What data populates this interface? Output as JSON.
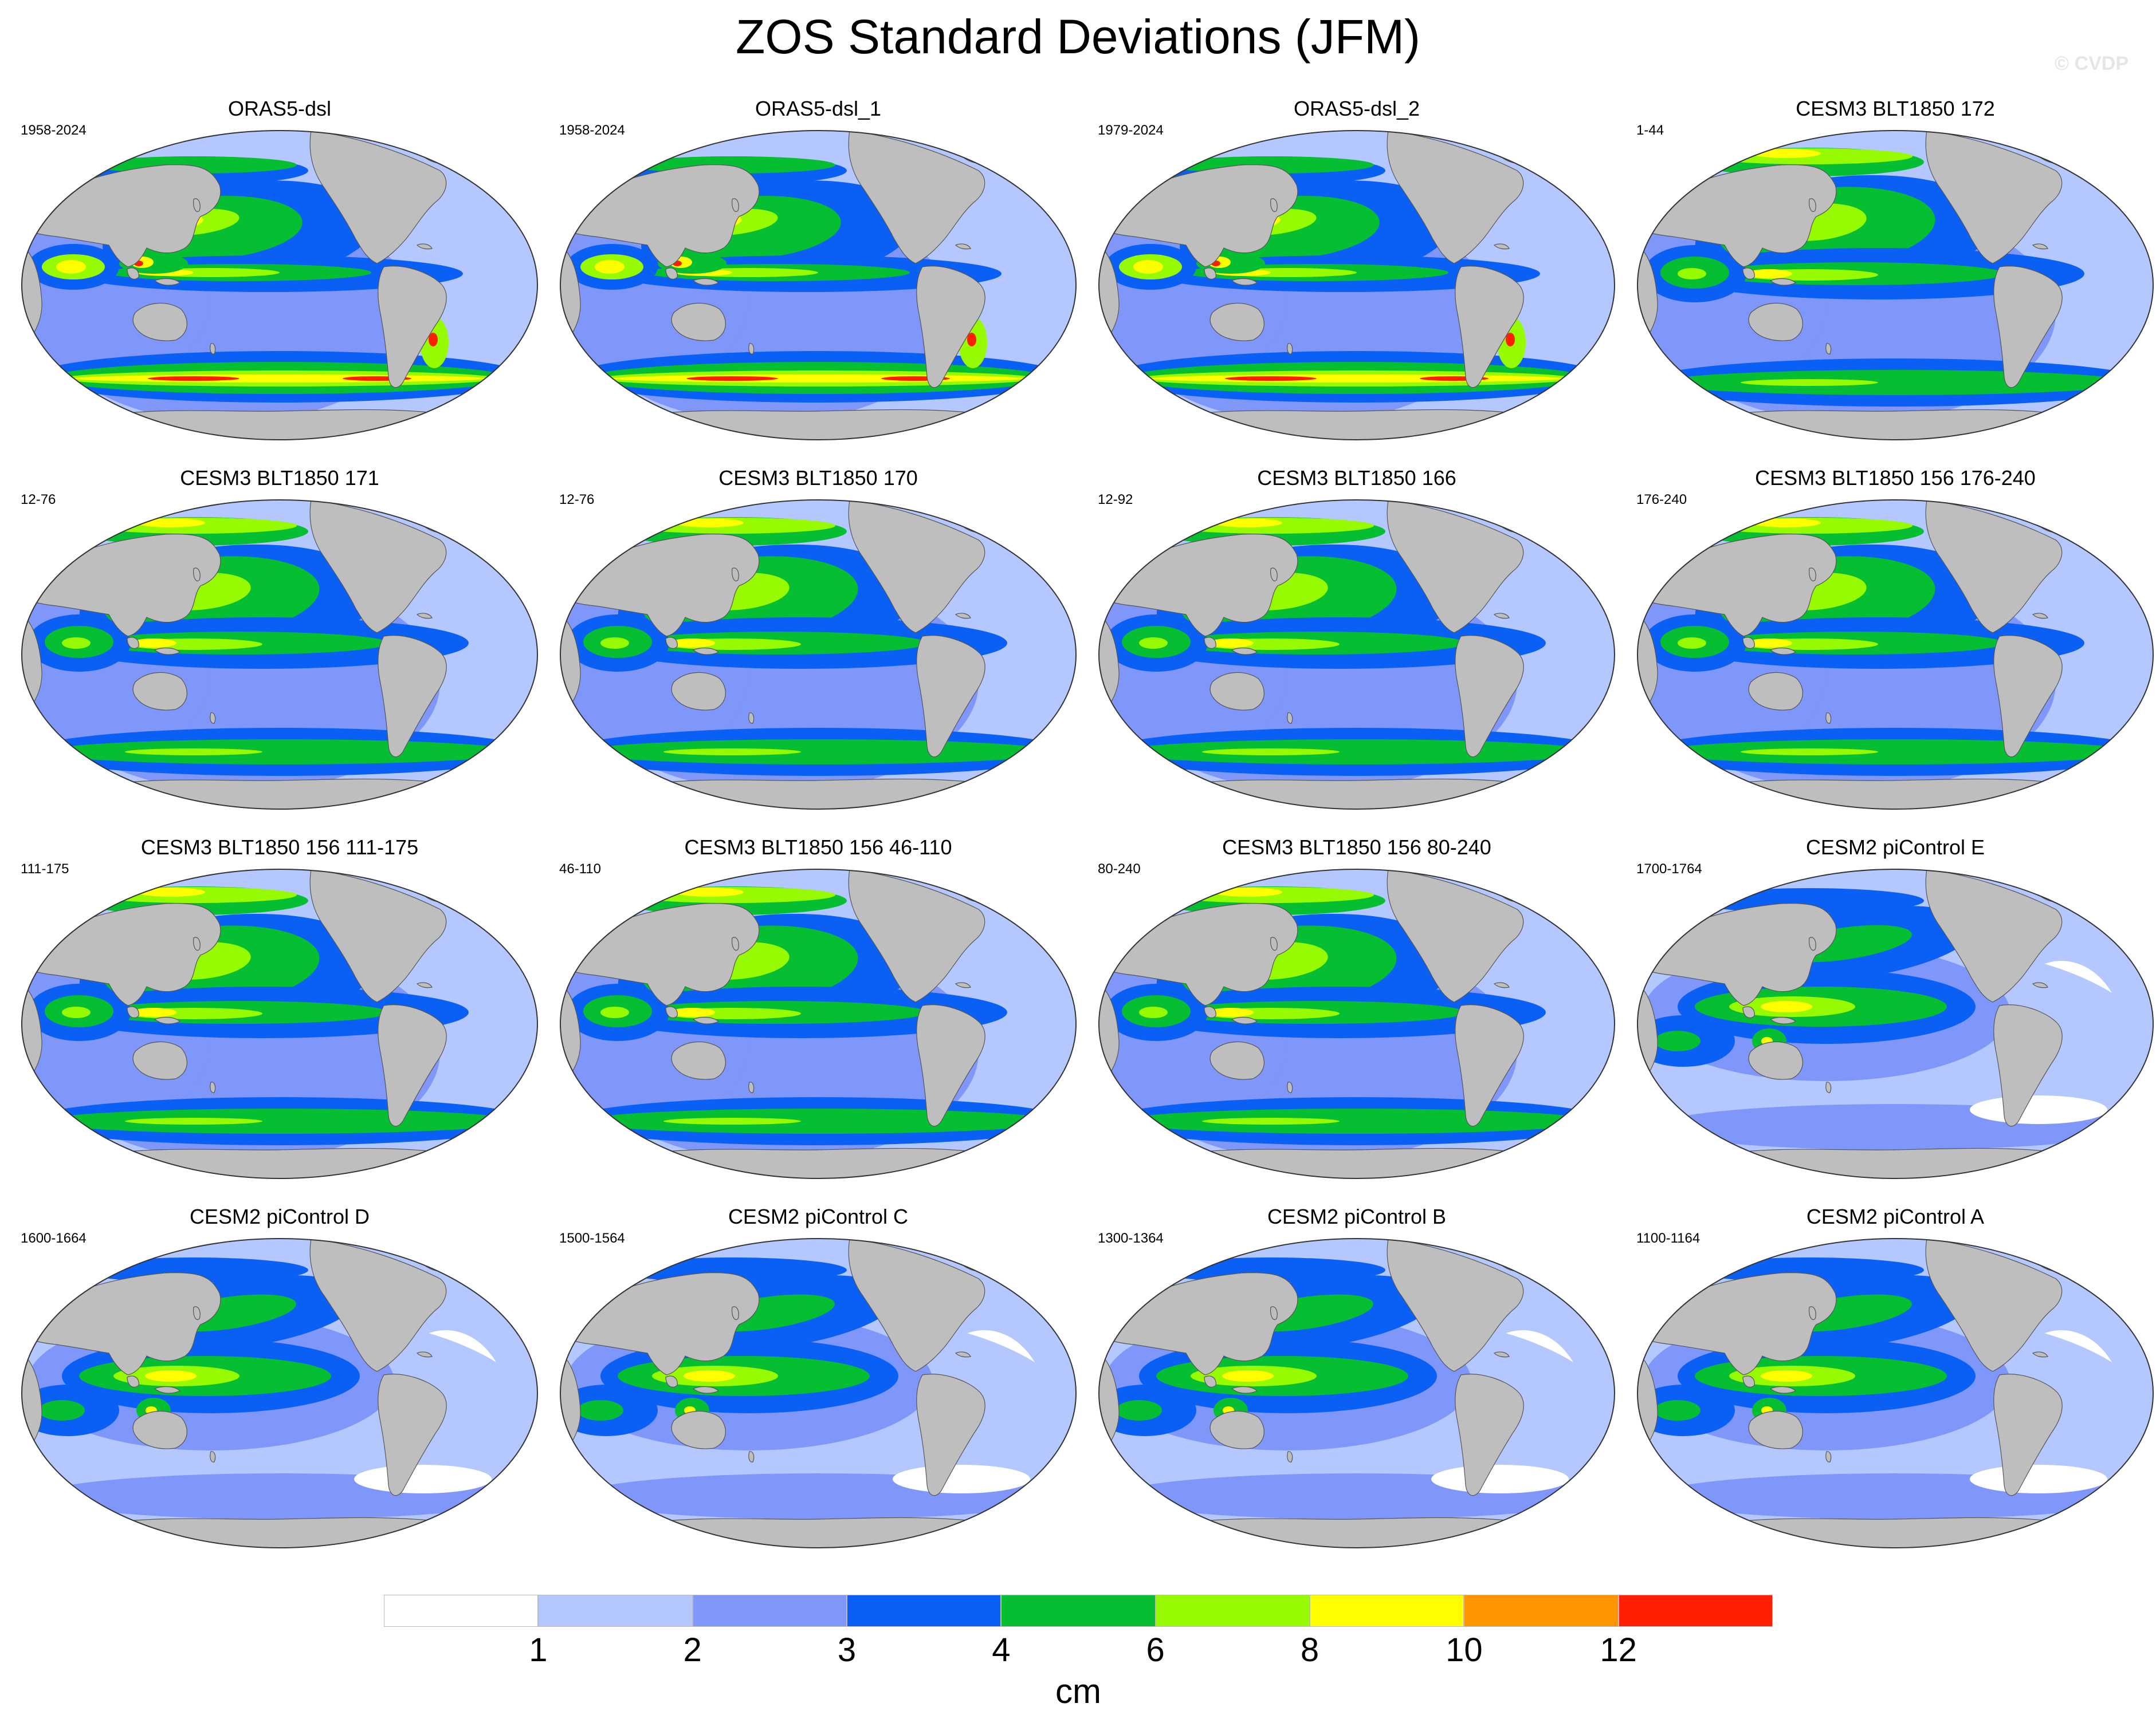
{
  "title": "ZOS Standard Deviations (JFM)",
  "watermark": "© CVDP",
  "legend": {
    "ticks": [
      "1",
      "2",
      "3",
      "4",
      "6",
      "8",
      "10",
      "12"
    ],
    "units": "cm",
    "colors": [
      "#ffffff",
      "#b4c8ff",
      "#7f96fa",
      "#0a5ff5",
      "#05be32",
      "#96fa00",
      "#ffff00",
      "#ff9600",
      "#ff1e00"
    ]
  },
  "land_color": "#bebebe",
  "panels": [
    {
      "title": "ORAS5-dsl",
      "years": "1958-2024",
      "style": "oras"
    },
    {
      "title": "ORAS5-dsl_1",
      "years": "1958-2024",
      "style": "oras"
    },
    {
      "title": "ORAS5-dsl_2",
      "years": "1979-2024",
      "style": "oras"
    },
    {
      "title": "CESM3 BLT1850 172",
      "years": "1-44",
      "style": "cesm3"
    },
    {
      "title": "CESM3 BLT1850 171",
      "years": "12-76",
      "style": "cesm3"
    },
    {
      "title": "CESM3 BLT1850 170",
      "years": "12-76",
      "style": "cesm3"
    },
    {
      "title": "CESM3 BLT1850 166",
      "years": "12-92",
      "style": "cesm3"
    },
    {
      "title": "CESM3 BLT1850 156 176-240",
      "years": "176-240",
      "style": "cesm3"
    },
    {
      "title": "CESM3 BLT1850 156 111-175",
      "years": "111-175",
      "style": "cesm3"
    },
    {
      "title": "CESM3 BLT1850 156 46-110",
      "years": "46-110",
      "style": "cesm3"
    },
    {
      "title": "CESM3 BLT1850 156 80-240",
      "years": "80-240",
      "style": "cesm3"
    },
    {
      "title": "CESM2 piControl E",
      "years": "1700-1764",
      "style": "cesm2"
    },
    {
      "title": "CESM2 piControl D",
      "years": "1600-1664",
      "style": "cesm2"
    },
    {
      "title": "CESM2 piControl C",
      "years": "1500-1564",
      "style": "cesm2"
    },
    {
      "title": "CESM2 piControl B",
      "years": "1300-1364",
      "style": "cesm2"
    },
    {
      "title": "CESM2 piControl A",
      "years": "1100-1164",
      "style": "cesm2"
    }
  ]
}
